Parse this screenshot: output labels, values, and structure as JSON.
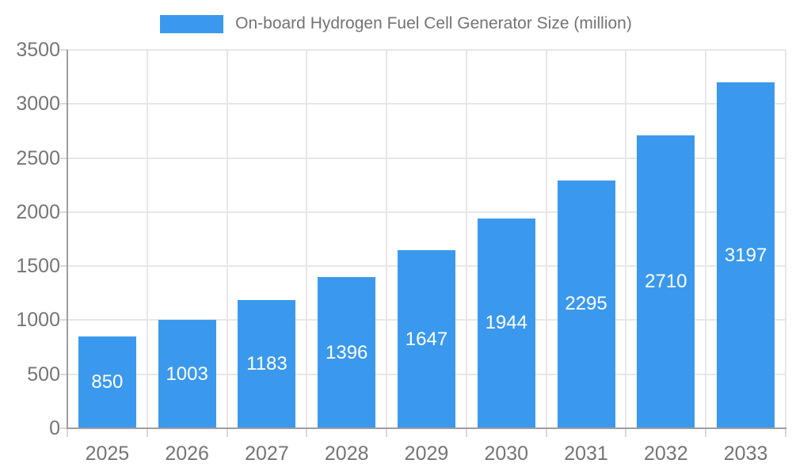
{
  "chart_data": {
    "type": "bar",
    "title": "On-board Hydrogen Fuel Cell Generator Size (million)",
    "categories": [
      "2025",
      "2026",
      "2027",
      "2028",
      "2029",
      "2030",
      "2031",
      "2032",
      "2033"
    ],
    "values": [
      850,
      1003,
      1183,
      1396,
      1647,
      1944,
      2295,
      2710,
      3197
    ],
    "series": [
      {
        "name": "On-board Hydrogen Fuel Cell Generator Size (million)",
        "values": [
          850,
          1003,
          1183,
          1396,
          1647,
          1944,
          2295,
          2710,
          3197
        ]
      }
    ],
    "xlabel": "",
    "ylabel": "",
    "ylim": [
      0,
      3500
    ],
    "yticks": [
      0,
      500,
      1000,
      1500,
      2000,
      2500,
      3000,
      3500
    ],
    "grid": true,
    "legend_position": "top-center",
    "value_label_position": "inside-center"
  },
  "legend": {
    "label": "On-board Hydrogen Fuel Cell Generator Size (million)"
  },
  "colors": {
    "bar": "#3b99ed",
    "axis_line": "#9e9e9e",
    "gridline": "#e7e7e7",
    "tick": "#d9d9d9",
    "axis_text": "#757575",
    "legend_text": "#737373",
    "value_text": "#ffffff",
    "background": "#ffffff"
  }
}
